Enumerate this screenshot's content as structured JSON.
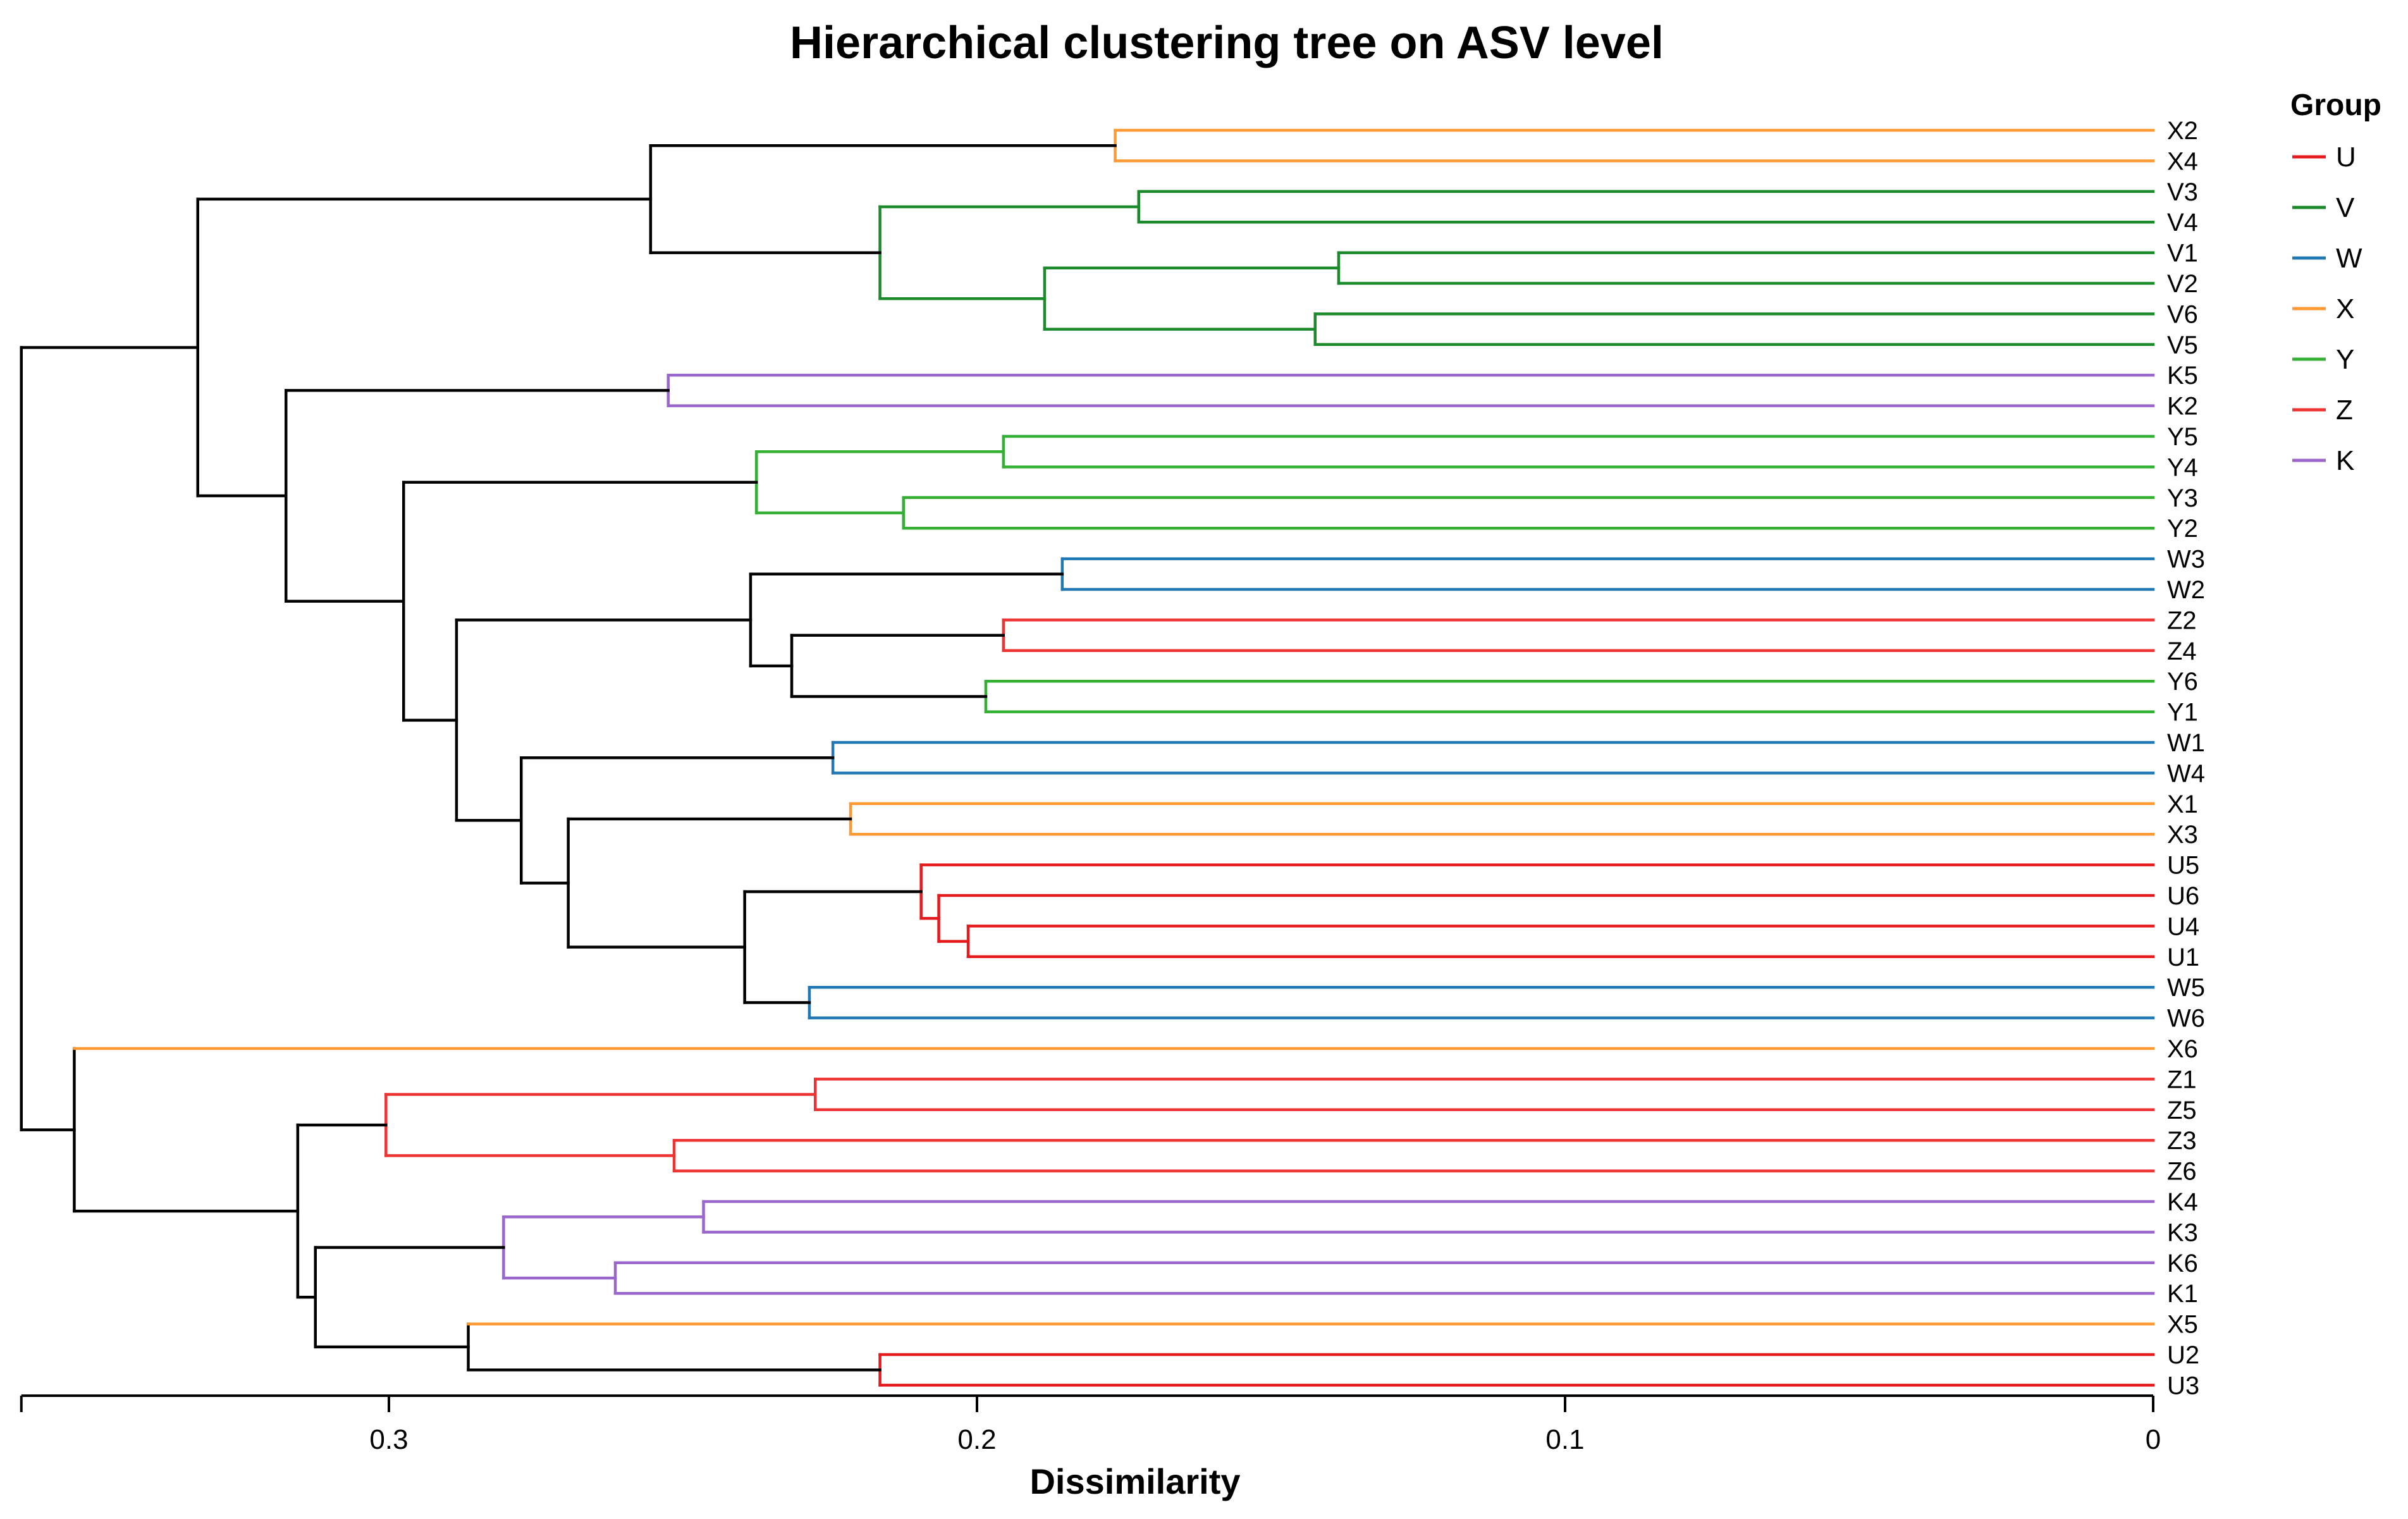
{
  "chart_data": {
    "type": "dendrogram",
    "title": "Hierarchical clustering tree on ASV level",
    "xlabel": "Dissimilarity",
    "xlim": [
      0.3625,
      0
    ],
    "xticks": [
      0.3,
      0.2,
      0.1,
      0
    ],
    "xtick_labels": [
      "0.3",
      "0.2",
      "0.1",
      "0"
    ],
    "legend": {
      "title": "Group",
      "position": "top-right",
      "items": [
        {
          "name": "U",
          "color": "#e41a1c"
        },
        {
          "name": "V",
          "color": "#1a8a2a"
        },
        {
          "name": "W",
          "color": "#1f78b4"
        },
        {
          "name": "X",
          "color": "#ff9933"
        },
        {
          "name": "Y",
          "color": "#33b033"
        },
        {
          "name": "Z",
          "color": "#ee3333"
        },
        {
          "name": "K",
          "color": "#9966cc"
        }
      ]
    },
    "link_color": "#000000",
    "leaves": [
      "X2",
      "X4",
      "V3",
      "V4",
      "V1",
      "V2",
      "V6",
      "V5",
      "K5",
      "K2",
      "Y5",
      "Y4",
      "Y3",
      "Y2",
      "W3",
      "W2",
      "Z2",
      "Z4",
      "Y6",
      "Y1",
      "W1",
      "W4",
      "X1",
      "X3",
      "U5",
      "U6",
      "U4",
      "U1",
      "W5",
      "W6",
      "X6",
      "Z1",
      "Z5",
      "Z3",
      "Z6",
      "K4",
      "K3",
      "K6",
      "K1",
      "X5",
      "U2",
      "U3"
    ],
    "tree": {
      "h": 0.3625,
      "c": [
        {
          "h": 0.3325,
          "c": [
            {
              "h": 0.2555,
              "c": [
                {
                  "h": 0.1765,
                  "g": "X",
                  "c": [
                    "X2",
                    "X4"
                  ]
                },
                {
                  "h": 0.2165,
                  "g": "V",
                  "c": [
                    {
                      "h": 0.1725,
                      "g": "V",
                      "c": [
                        "V3",
                        "V4"
                      ]
                    },
                    {
                      "h": 0.1885,
                      "g": "V",
                      "c": [
                        {
                          "h": 0.1385,
                          "g": "V",
                          "c": [
                            "V1",
                            "V2"
                          ]
                        },
                        {
                          "h": 0.1425,
                          "g": "V",
                          "c": [
                            "V6",
                            "V5"
                          ]
                        }
                      ]
                    }
                  ]
                }
              ]
            },
            {
              "h": 0.3175,
              "c": [
                {
                  "h": 0.2525,
                  "g": "K",
                  "c": [
                    "K5",
                    "K2"
                  ]
                },
                {
                  "h": 0.2975,
                  "c": [
                    {
                      "h": 0.2375,
                      "g": "Y",
                      "c": [
                        {
                          "h": 0.1955,
                          "g": "Y",
                          "c": [
                            "Y5",
                            "Y4"
                          ]
                        },
                        {
                          "h": 0.2125,
                          "g": "Y",
                          "c": [
                            "Y3",
                            "Y2"
                          ]
                        }
                      ]
                    },
                    {
                      "h": 0.2885,
                      "c": [
                        {
                          "h": 0.2385,
                          "c": [
                            {
                              "h": 0.1855,
                              "g": "W",
                              "c": [
                                "W3",
                                "W2"
                              ]
                            },
                            {
                              "h": 0.2315,
                              "c": [
                                {
                                  "h": 0.1955,
                                  "g": "Z",
                                  "c": [
                                    "Z2",
                                    "Z4"
                                  ]
                                },
                                {
                                  "h": 0.1985,
                                  "g": "Y",
                                  "c": [
                                    "Y6",
                                    "Y1"
                                  ]
                                }
                              ]
                            }
                          ]
                        },
                        {
                          "h": 0.2775,
                          "c": [
                            {
                              "h": 0.2245,
                              "g": "W",
                              "c": [
                                "W1",
                                "W4"
                              ]
                            },
                            {
                              "h": 0.2695,
                              "c": [
                                {
                                  "h": 0.2215,
                                  "g": "X",
                                  "c": [
                                    "X1",
                                    "X3"
                                  ]
                                },
                                {
                                  "h": 0.2395,
                                  "c": [
                                    {
                                      "h": 0.2095,
                                      "g": "U",
                                      "c": [
                                        "U5",
                                        {
                                          "h": 0.2065,
                                          "g": "U",
                                          "c": [
                                            "U6",
                                            {
                                              "h": 0.2015,
                                              "g": "U",
                                              "c": [
                                                "U4",
                                                "U1"
                                              ]
                                            }
                                          ]
                                        }
                                      ]
                                    },
                                    {
                                      "h": 0.2285,
                                      "g": "W",
                                      "c": [
                                        "W5",
                                        "W6"
                                      ]
                                    }
                                  ]
                                }
                              ]
                            }
                          ]
                        }
                      ]
                    }
                  ]
                }
              ]
            }
          ]
        },
        {
          "h": 0.3535,
          "c": [
            {
              "leaf": "X6",
              "g": "X"
            },
            {
              "h": 0.3155,
              "c": [
                {
                  "h": 0.3005,
                  "g": "Z",
                  "c": [
                    {
                      "h": 0.2275,
                      "g": "Z",
                      "c": [
                        "Z1",
                        "Z5"
                      ]
                    },
                    {
                      "h": 0.2515,
                      "g": "Z",
                      "c": [
                        "Z3",
                        "Z6"
                      ]
                    }
                  ]
                },
                {
                  "h": 0.3125,
                  "c": [
                    {
                      "h": 0.2805,
                      "g": "K",
                      "c": [
                        {
                          "h": 0.2465,
                          "g": "K",
                          "c": [
                            "K4",
                            "K3"
                          ]
                        },
                        {
                          "h": 0.2615,
                          "g": "K",
                          "c": [
                            "K6",
                            "K1"
                          ]
                        }
                      ]
                    },
                    {
                      "h": 0.2865,
                      "c": [
                        {
                          "leaf": "X5",
                          "g": "X"
                        },
                        {
                          "h": 0.2165,
                          "g": "U",
                          "c": [
                            "U2",
                            "U3"
                          ]
                        }
                      ]
                    }
                  ]
                }
              ]
            }
          ]
        }
      ]
    }
  }
}
